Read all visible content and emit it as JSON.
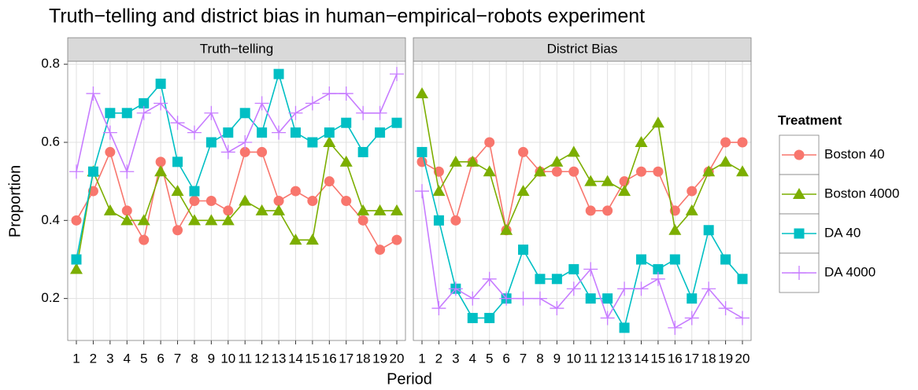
{
  "chart_data": {
    "type": "line",
    "title": "Truth−telling and district bias in human−empirical−robots experiment",
    "x_label": "Period",
    "y_label": "Proportion",
    "legend_title": "Treatment",
    "legend_position": "right",
    "grid": true,
    "categories": [
      1,
      2,
      3,
      4,
      5,
      6,
      7,
      8,
      9,
      10,
      11,
      12,
      13,
      14,
      15,
      16,
      17,
      18,
      19,
      20
    ],
    "ylim": [
      0.0925,
      0.8075
    ],
    "yticks": [
      0.2,
      0.4,
      0.6,
      0.8
    ],
    "series": [
      {
        "name": "Boston 40",
        "color": "#F8766D",
        "marker": "circle"
      },
      {
        "name": "Boston 4000",
        "color": "#7CAE00",
        "marker": "triangle"
      },
      {
        "name": "DA 40",
        "color": "#00BFC4",
        "marker": "square"
      },
      {
        "name": "DA 4000",
        "color": "#C77CFF",
        "marker": "plus"
      }
    ],
    "facets": [
      {
        "title": "Truth−telling",
        "series": [
          {
            "values": [
              0.4,
              0.475,
              0.575,
              0.425,
              0.35,
              0.55,
              0.375,
              0.45,
              0.45,
              0.425,
              0.575,
              0.575,
              0.45,
              0.475,
              0.45,
              0.5,
              0.45,
              0.4,
              0.325,
              0.35
            ]
          },
          {
            "values": [
              0.275,
              0.525,
              0.425,
              0.4,
              0.4,
              0.525,
              0.475,
              0.4,
              0.4,
              0.4,
              0.45,
              0.425,
              0.425,
              0.35,
              0.35,
              0.6,
              0.55,
              0.425,
              0.425,
              0.425
            ]
          },
          {
            "values": [
              0.3,
              0.525,
              0.675,
              0.675,
              0.7,
              0.75,
              0.55,
              0.475,
              0.6,
              0.625,
              0.675,
              0.625,
              0.775,
              0.625,
              0.6,
              0.625,
              0.65,
              0.575,
              0.625,
              0.65
            ]
          },
          {
            "values": [
              0.525,
              0.725,
              0.625,
              0.525,
              0.675,
              0.7,
              0.65,
              0.625,
              0.675,
              0.575,
              0.6,
              0.7,
              0.625,
              0.675,
              0.7,
              0.725,
              0.725,
              0.675,
              0.675,
              0.775
            ]
          }
        ]
      },
      {
        "title": "District Bias",
        "series": [
          {
            "values": [
              0.55,
              0.525,
              0.4,
              0.55,
              0.6,
              0.375,
              0.575,
              0.525,
              0.525,
              0.525,
              0.425,
              0.425,
              0.5,
              0.525,
              0.525,
              0.425,
              0.475,
              0.525,
              0.6,
              0.6
            ]
          },
          {
            "values": [
              0.725,
              0.475,
              0.55,
              0.55,
              0.525,
              0.375,
              0.475,
              0.525,
              0.55,
              0.575,
              0.5,
              0.5,
              0.475,
              0.6,
              0.65,
              0.375,
              0.425,
              0.525,
              0.55,
              0.525
            ]
          },
          {
            "values": [
              0.575,
              0.4,
              0.225,
              0.15,
              0.15,
              0.2,
              0.325,
              0.25,
              0.25,
              0.275,
              0.2,
              0.2,
              0.125,
              0.3,
              0.275,
              0.3,
              0.2,
              0.375,
              0.3,
              0.25
            ]
          },
          {
            "values": [
              0.475,
              0.175,
              0.225,
              0.2,
              0.25,
              0.2,
              0.2,
              0.2,
              0.175,
              0.225,
              0.275,
              0.15,
              0.225,
              0.225,
              0.25,
              0.125,
              0.15,
              0.225,
              0.175,
              0.15
            ]
          }
        ]
      }
    ]
  }
}
